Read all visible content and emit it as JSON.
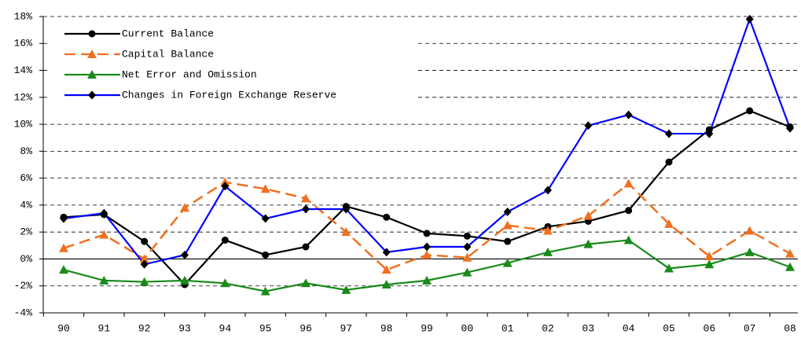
{
  "chart_data": {
    "type": "line",
    "categories": [
      "90",
      "91",
      "92",
      "93",
      "94",
      "95",
      "96",
      "97",
      "98",
      "99",
      "00",
      "01",
      "02",
      "03",
      "04",
      "05",
      "06",
      "07",
      "08"
    ],
    "series": [
      {
        "name": "Current Balance",
        "color": "#000000",
        "marker": "circle",
        "marker_color": "#000000",
        "dashed": false,
        "values": [
          3.1,
          3.3,
          1.3,
          -1.9,
          1.4,
          0.3,
          0.9,
          3.9,
          3.1,
          1.9,
          1.7,
          1.3,
          2.4,
          2.8,
          3.6,
          7.2,
          9.6,
          11.0,
          9.8
        ]
      },
      {
        "name": "Capital Balance",
        "color": "#f07020",
        "marker": "triangle",
        "marker_color": "#f07020",
        "dashed": true,
        "values": [
          0.8,
          1.8,
          0.0,
          3.8,
          5.7,
          5.2,
          4.5,
          2.0,
          -0.8,
          0.3,
          0.1,
          2.5,
          2.1,
          3.2,
          5.6,
          2.6,
          0.2,
          2.1,
          0.4
        ]
      },
      {
        "name": "Net Error and Omission",
        "color": "#1a8a1a",
        "marker": "triangle",
        "marker_color": "#1a8a1a",
        "dashed": false,
        "values": [
          -0.8,
          -1.6,
          -1.7,
          -1.6,
          -1.8,
          -2.4,
          -1.8,
          -2.3,
          -1.9,
          -1.6,
          -1.0,
          -0.3,
          0.5,
          1.1,
          1.4,
          -0.7,
          -0.4,
          0.5,
          -0.6
        ]
      },
      {
        "name": "Changes in Foreign Exchange Reserve",
        "color": "#0000ff",
        "marker": "diamond",
        "marker_color": "#000000",
        "dashed": false,
        "values": [
          3.0,
          3.4,
          -0.4,
          0.3,
          5.4,
          3.0,
          3.7,
          3.7,
          0.5,
          0.9,
          0.9,
          3.5,
          5.1,
          9.9,
          10.7,
          9.3,
          9.3,
          17.8,
          9.7
        ]
      }
    ],
    "ylim": [
      -4,
      18
    ],
    "yticks": [
      {
        "value": -4,
        "label": "-4%"
      },
      {
        "value": -2,
        "label": "-2%"
      },
      {
        "value": 0,
        "label": "0%"
      },
      {
        "value": 2,
        "label": "2%"
      },
      {
        "value": 4,
        "label": "4%"
      },
      {
        "value": 6,
        "label": "6%"
      },
      {
        "value": 8,
        "label": "8%"
      },
      {
        "value": 10,
        "label": "10%"
      },
      {
        "value": 12,
        "label": "12%"
      },
      {
        "value": 14,
        "label": "14%"
      },
      {
        "value": 16,
        "label": "16%"
      },
      {
        "value": 18,
        "label": "18%"
      }
    ],
    "grid": true,
    "legend": "upper left"
  }
}
